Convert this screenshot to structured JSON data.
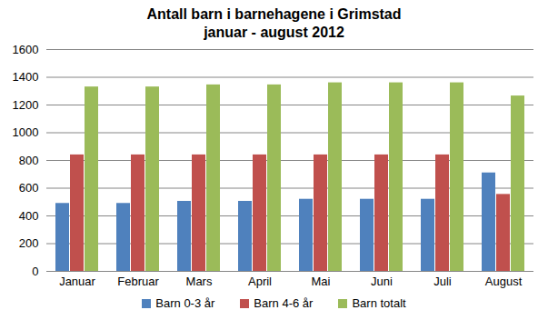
{
  "chart_data": {
    "type": "bar",
    "title": "Antall barn i barnehagene i Grimstad\njanuar - august 2012",
    "categories": [
      "Januar",
      "Februar",
      "Mars",
      "April",
      "Mai",
      "Juni",
      "Juli",
      "August"
    ],
    "series": [
      {
        "name": "Barn 0-3 år",
        "color": "#4f81bd",
        "values": [
          490,
          490,
          505,
          505,
          520,
          520,
          520,
          710
        ]
      },
      {
        "name": "Barn 4-6 år",
        "color": "#c0504d",
        "values": [
          840,
          840,
          840,
          840,
          840,
          840,
          840,
          555
        ]
      },
      {
        "name": "Barn totalt",
        "color": "#9bbb59",
        "values": [
          1330,
          1330,
          1345,
          1345,
          1360,
          1360,
          1360,
          1265
        ]
      }
    ],
    "ylim": [
      0,
      1600
    ],
    "yticks": [
      0,
      200,
      400,
      600,
      800,
      1000,
      1200,
      1400,
      1600
    ],
    "grid": true,
    "legend": "bottom"
  }
}
